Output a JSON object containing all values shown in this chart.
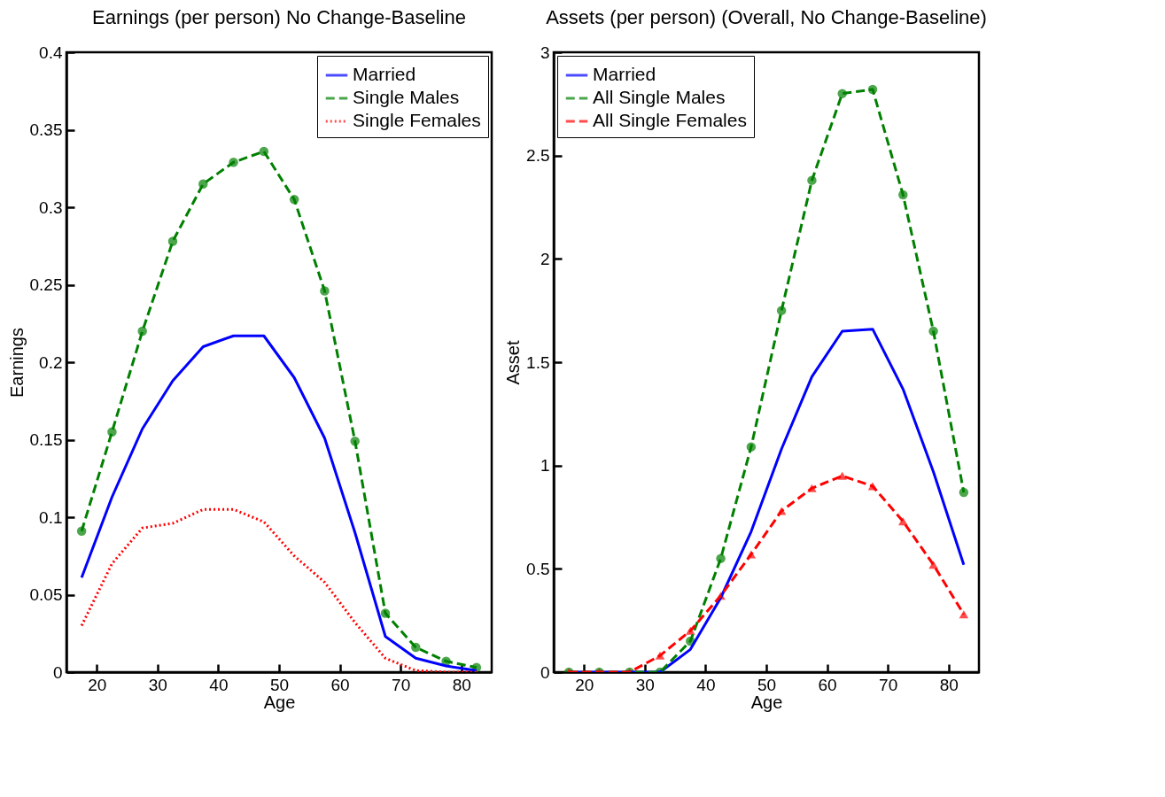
{
  "chart_data": [
    {
      "type": "line",
      "title": "Earnings (per person)  No Change-Baseline",
      "xlabel": "Age",
      "ylabel": "Earnings",
      "x": [
        17.5,
        22.5,
        27.5,
        32.5,
        37.5,
        42.5,
        47.5,
        52.5,
        57.5,
        62.5,
        67.5,
        72.5,
        77.5,
        82.5
      ],
      "xlim": [
        15,
        85
      ],
      "xticks": [
        20,
        30,
        40,
        50,
        60,
        70,
        80
      ],
      "ylim": [
        0,
        0.4
      ],
      "yticks": [
        0,
        0.05,
        0.1,
        0.15,
        0.2,
        0.25,
        0.3,
        0.35,
        0.4
      ],
      "grid": false,
      "legend": "top right",
      "series": [
        {
          "name": "Married",
          "color": "#0000ff",
          "line_style": "solid",
          "marker": "none",
          "values": [
            0.061,
            0.113,
            0.157,
            0.188,
            0.21,
            0.217,
            0.217,
            0.19,
            0.151,
            0.09,
            0.023,
            0.009,
            0.004,
            0.001
          ]
        },
        {
          "name": "Single Males",
          "color": "#008000",
          "line_style": "dashed",
          "marker": "circle",
          "values": [
            0.091,
            0.155,
            0.22,
            0.278,
            0.315,
            0.329,
            0.336,
            0.305,
            0.246,
            0.149,
            0.038,
            0.016,
            0.007,
            0.003
          ]
        },
        {
          "name": "Single Females",
          "color": "#ff0000",
          "line_style": "dotted",
          "marker": "none",
          "values": [
            0.03,
            0.07,
            0.093,
            0.096,
            0.105,
            0.105,
            0.097,
            0.075,
            0.058,
            0.032,
            0.009,
            0.001,
            0.0,
            0.0
          ]
        }
      ]
    },
    {
      "type": "line",
      "title": "Assets (per person) (Overall, No Change-Baseline)",
      "xlabel": "Age",
      "ylabel": "Asset",
      "x": [
        17.5,
        22.5,
        27.5,
        32.5,
        37.5,
        42.5,
        47.5,
        52.5,
        57.5,
        62.5,
        67.5,
        72.5,
        77.5,
        82.5
      ],
      "xlim": [
        15,
        85
      ],
      "xticks": [
        20,
        30,
        40,
        50,
        60,
        70,
        80
      ],
      "ylim": [
        0,
        3
      ],
      "yticks": [
        0,
        0.5,
        1,
        1.5,
        2,
        2.5,
        3
      ],
      "grid": false,
      "legend": "top left",
      "series": [
        {
          "name": "Married",
          "color": "#0000ff",
          "line_style": "solid",
          "marker": "none",
          "values": [
            0,
            0,
            0,
            0,
            0.11,
            0.36,
            0.68,
            1.08,
            1.43,
            1.65,
            1.66,
            1.37,
            0.97,
            0.52
          ]
        },
        {
          "name": "All Single Males",
          "color": "#008000",
          "line_style": "dashed",
          "marker": "circle",
          "values": [
            0,
            0,
            0,
            0,
            0.15,
            0.55,
            1.09,
            1.75,
            2.38,
            2.8,
            2.82,
            2.31,
            1.65,
            0.87
          ]
        },
        {
          "name": "All Single Females",
          "color": "#ff0000",
          "line_style": "dashed",
          "marker": "triangle",
          "values": [
            0,
            0,
            0,
            0.08,
            0.2,
            0.37,
            0.57,
            0.78,
            0.89,
            0.95,
            0.9,
            0.73,
            0.52,
            0.28
          ]
        }
      ]
    }
  ]
}
